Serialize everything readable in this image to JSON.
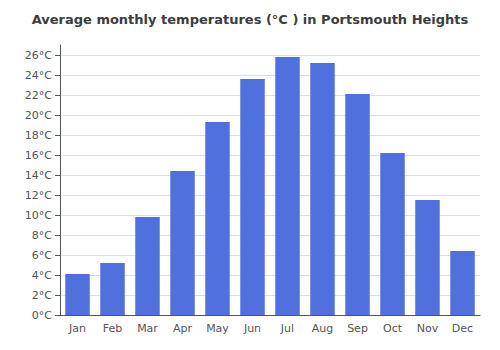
{
  "chart_data": {
    "type": "bar",
    "title": "Average monthly temperatures (°C ) in Portsmouth Heights",
    "categories": [
      "Jan",
      "Feb",
      "Mar",
      "Apr",
      "May",
      "Jun",
      "Jul",
      "Aug",
      "Sep",
      "Oct",
      "Nov",
      "Dec"
    ],
    "values": [
      4.1,
      5.2,
      9.8,
      14.4,
      19.3,
      23.6,
      25.8,
      25.2,
      22.1,
      16.2,
      11.5,
      6.4
    ],
    "ylim": [
      0,
      27
    ],
    "yticks": [
      {
        "value": 0,
        "label": "0°C"
      },
      {
        "value": 2,
        "label": "2°C"
      },
      {
        "value": 4,
        "label": "4°C"
      },
      {
        "value": 6,
        "label": "6°C"
      },
      {
        "value": 8,
        "label": "8°C"
      },
      {
        "value": 10,
        "label": "10°C"
      },
      {
        "value": 12,
        "label": "12°C"
      },
      {
        "value": 14,
        "label": "14°C"
      },
      {
        "value": 16,
        "label": "16°C"
      },
      {
        "value": 18,
        "label": "18°C"
      },
      {
        "value": 20,
        "label": "20°C"
      },
      {
        "value": 22,
        "label": "22°C"
      },
      {
        "value": 24,
        "label": "24°C"
      },
      {
        "value": 26,
        "label": "26°C"
      }
    ],
    "grid": true
  }
}
